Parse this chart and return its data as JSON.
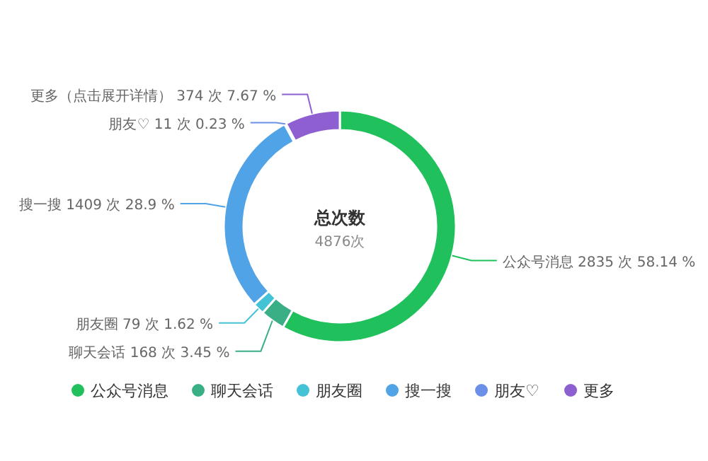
{
  "chart_data": {
    "type": "donut",
    "title": "总次数",
    "subtitle": "4876次",
    "categories": [
      "公众号消息",
      "聊天会话",
      "朋友圈",
      "搜一搜",
      "朋友♡",
      "更多"
    ],
    "values": [
      2835,
      168,
      79,
      1409,
      11,
      374
    ],
    "colors": [
      "#20c05c",
      "#3aae84",
      "#45c3d6",
      "#4fa3e6",
      "#6c8fe8",
      "#8d5fd1"
    ],
    "value_labels": [
      "公众号消息 2835 次 58.14 %",
      "聊天会话 168 次 3.45 %",
      "朋友圈 79 次 1.62 %",
      "搜一搜 1409 次 28.9 %",
      "朋友♡ 11 次 0.23 %",
      "更多（点击展开详情） 374 次 7.67 %"
    ],
    "legend": "bottom"
  }
}
